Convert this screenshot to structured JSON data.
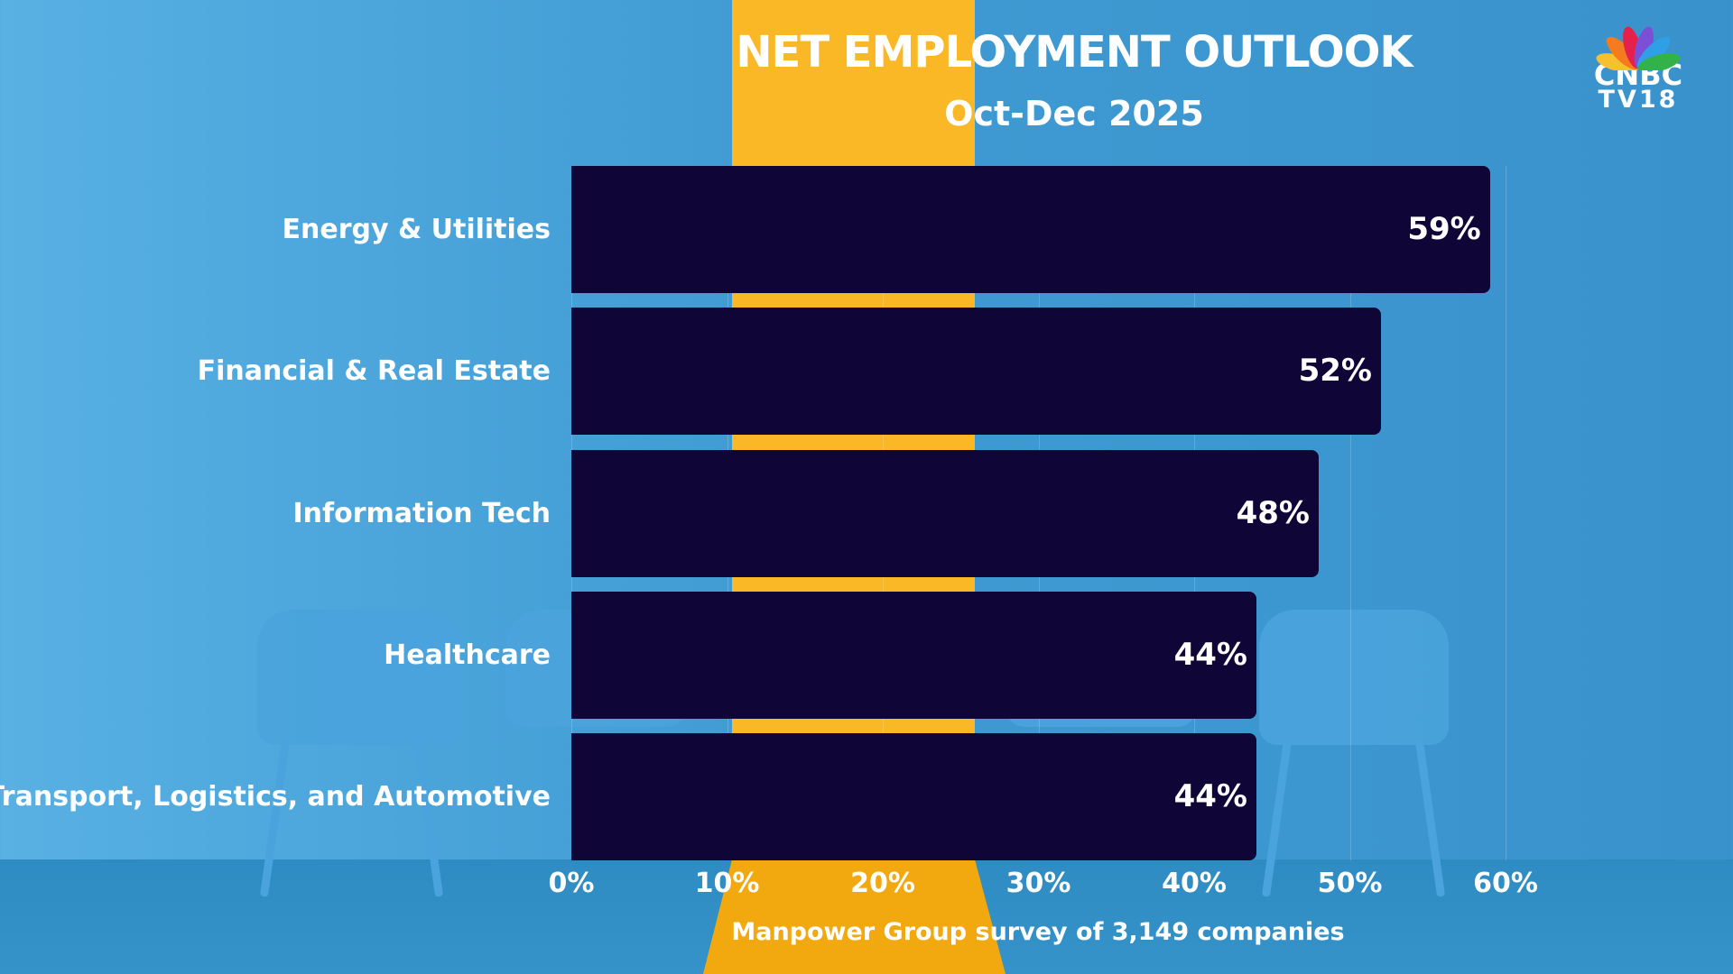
{
  "brand": {
    "name": "CNBC",
    "sub": "TV18",
    "colors": [
      "#f6c12f",
      "#f47b20",
      "#e5204a",
      "#7b4fd6",
      "#2fa0e6",
      "#34b24a"
    ]
  },
  "colors": {
    "bar": "#100537",
    "accent": "#fbb826",
    "background": "#3f9bd3"
  },
  "chart_data": {
    "type": "bar",
    "orientation": "horizontal",
    "title": "NET EMPLOYMENT OUTLOOK",
    "subtitle": "Oct-Dec 2025",
    "categories": [
      "Energy & Utilities",
      "Financial & Real Estate",
      "Information Tech",
      "Healthcare",
      "Transport, Logistics, and Automotive"
    ],
    "values": [
      59,
      52,
      48,
      44,
      44
    ],
    "data_labels": [
      "59%",
      "52%",
      "48%",
      "44%",
      "44%"
    ],
    "xlim": [
      0,
      60
    ],
    "x_ticks": [
      "0%",
      "10%",
      "20%",
      "30%",
      "40%",
      "50%",
      "60%"
    ],
    "grid": true,
    "source": "Manpower Group survey of 3,149 companies"
  }
}
